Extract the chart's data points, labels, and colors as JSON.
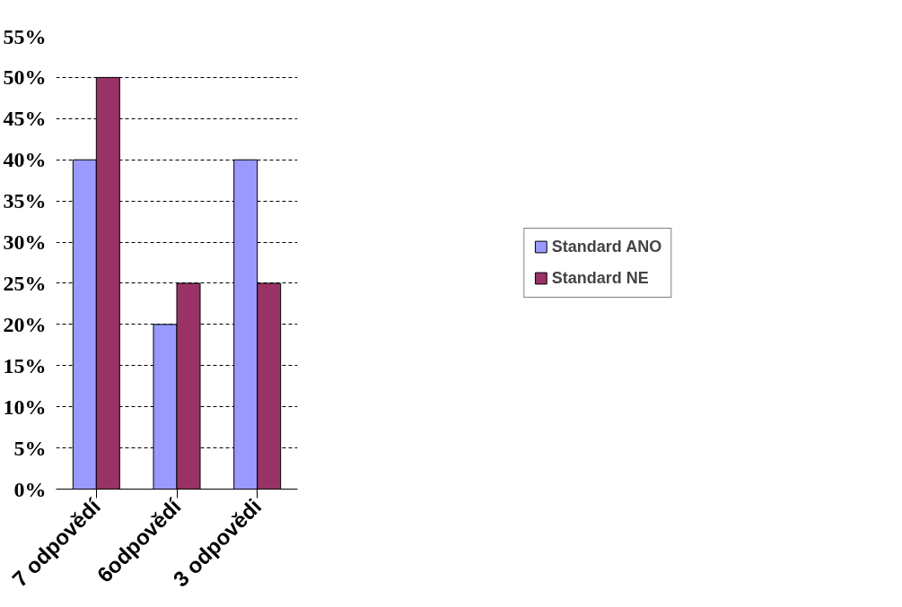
{
  "chart_data": {
    "type": "bar",
    "categories": [
      "7 odpovědí",
      "6odpovědí",
      "3 odpovědi"
    ],
    "series": [
      {
        "name": "Standard ANO",
        "color": "#9999ff",
        "values": [
          40,
          20,
          40
        ]
      },
      {
        "name": "Standard NE",
        "color": "#993366",
        "values": [
          50,
          25,
          25
        ]
      }
    ],
    "ylim": [
      0,
      55
    ],
    "yticks": [
      {
        "value": 0,
        "label": "0%"
      },
      {
        "value": 5,
        "label": "5%"
      },
      {
        "value": 10,
        "label": "10%"
      },
      {
        "value": 15,
        "label": "15%"
      },
      {
        "value": 20,
        "label": "20%"
      },
      {
        "value": 25,
        "label": "25%"
      },
      {
        "value": 30,
        "label": "30%"
      },
      {
        "value": 35,
        "label": "35%"
      },
      {
        "value": 40,
        "label": "40%"
      },
      {
        "value": 45,
        "label": "45%"
      },
      {
        "value": 50,
        "label": "50%"
      },
      {
        "value": 55,
        "label": "55%"
      }
    ],
    "grid": "y",
    "legend": "right"
  }
}
